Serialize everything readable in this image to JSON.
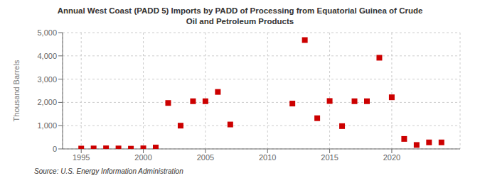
{
  "chart_data": {
    "type": "scatter",
    "title": "Annual West Coast (PADD 5) Imports by PADD of Processing from Equatorial Guinea of Crude\nOil and Petroleum Products",
    "ylabel": "Thousand Barrels",
    "annotations": [
      "Source: U.S. Energy Information Administration"
    ],
    "x": [
      1995,
      1996,
      1997,
      1998,
      1999,
      2000,
      2001,
      2002,
      2003,
      2004,
      2005,
      2006,
      2007,
      2012,
      2013,
      2014,
      2015,
      2016,
      2017,
      2018,
      2019,
      2020,
      2021,
      2022,
      2023,
      2024
    ],
    "values": [
      15,
      20,
      25,
      20,
      10,
      25,
      60,
      1975,
      1000,
      2050,
      2050,
      2450,
      1050,
      1950,
      4680,
      1320,
      2060,
      980,
      2050,
      2050,
      3920,
      2220,
      430,
      170,
      280,
      280
    ],
    "color": "#cc0000",
    "marker": "square",
    "grid": true,
    "xlim": [
      1993.5,
      2025.5
    ],
    "ylim": [
      0,
      5000
    ],
    "xticks": [
      1995,
      2000,
      2005,
      2010,
      2015,
      2020
    ],
    "yticks": [
      0,
      {
        "value": 1000,
        "label": "1,000"
      },
      {
        "value": 2000,
        "label": "2,000"
      },
      {
        "value": 3000,
        "label": "3,000"
      },
      {
        "value": 4000,
        "label": "4,000"
      },
      {
        "value": 5000,
        "label": "5,000"
      }
    ]
  }
}
